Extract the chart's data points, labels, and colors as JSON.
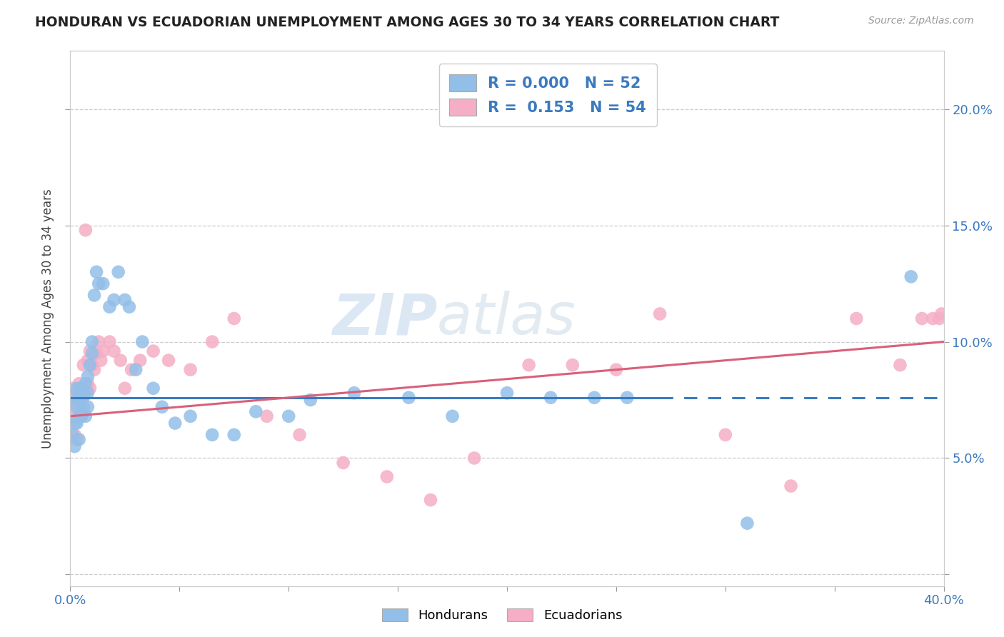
{
  "title": "HONDURAN VS ECUADORIAN UNEMPLOYMENT AMONG AGES 30 TO 34 YEARS CORRELATION CHART",
  "source": "Source: ZipAtlas.com",
  "ylabel": "Unemployment Among Ages 30 to 34 years",
  "xlim": [
    0.0,
    0.4
  ],
  "ylim": [
    -0.005,
    0.225
  ],
  "xticks": [
    0.0,
    0.05,
    0.1,
    0.15,
    0.2,
    0.25,
    0.3,
    0.35,
    0.4
  ],
  "yticks": [
    0.0,
    0.05,
    0.1,
    0.15,
    0.2
  ],
  "r_hondurans": "0.000",
  "n_hondurans": "52",
  "r_ecuadorians": "0.153",
  "n_ecuadorians": "54",
  "hondurans_color": "#92bfe8",
  "ecuadorians_color": "#f5aec5",
  "hondurans_line_color": "#3a7abf",
  "ecuadorians_line_color": "#d9607a",
  "watermark_zip": "ZIP",
  "watermark_atlas": "atlas",
  "background_color": "#ffffff",
  "h_line_y": 0.076,
  "h_line_solid_end": 0.27,
  "e_line_y0": 0.068,
  "e_line_y1": 0.1,
  "hondurans_x": [
    0.001,
    0.001,
    0.002,
    0.002,
    0.003,
    0.003,
    0.003,
    0.004,
    0.004,
    0.004,
    0.005,
    0.005,
    0.005,
    0.006,
    0.006,
    0.007,
    0.007,
    0.008,
    0.008,
    0.008,
    0.009,
    0.01,
    0.01,
    0.011,
    0.012,
    0.013,
    0.015,
    0.018,
    0.02,
    0.022,
    0.025,
    0.027,
    0.03,
    0.033,
    0.038,
    0.042,
    0.048,
    0.055,
    0.065,
    0.075,
    0.085,
    0.1,
    0.11,
    0.13,
    0.155,
    0.175,
    0.2,
    0.22,
    0.24,
    0.255,
    0.31,
    0.385
  ],
  "hondurans_y": [
    0.076,
    0.06,
    0.065,
    0.055,
    0.08,
    0.072,
    0.065,
    0.075,
    0.068,
    0.058,
    0.08,
    0.076,
    0.068,
    0.078,
    0.072,
    0.082,
    0.068,
    0.085,
    0.078,
    0.072,
    0.09,
    0.1,
    0.095,
    0.12,
    0.13,
    0.125,
    0.125,
    0.115,
    0.118,
    0.13,
    0.118,
    0.115,
    0.088,
    0.1,
    0.08,
    0.072,
    0.065,
    0.068,
    0.06,
    0.06,
    0.07,
    0.068,
    0.075,
    0.078,
    0.076,
    0.068,
    0.078,
    0.076,
    0.076,
    0.076,
    0.022,
    0.128
  ],
  "ecuadorians_x": [
    0.001,
    0.001,
    0.002,
    0.002,
    0.003,
    0.003,
    0.003,
    0.004,
    0.004,
    0.005,
    0.005,
    0.006,
    0.006,
    0.007,
    0.007,
    0.008,
    0.008,
    0.009,
    0.009,
    0.01,
    0.011,
    0.012,
    0.013,
    0.014,
    0.015,
    0.018,
    0.02,
    0.023,
    0.025,
    0.028,
    0.032,
    0.038,
    0.045,
    0.055,
    0.065,
    0.075,
    0.09,
    0.105,
    0.125,
    0.145,
    0.165,
    0.185,
    0.21,
    0.23,
    0.25,
    0.27,
    0.3,
    0.33,
    0.36,
    0.38,
    0.39,
    0.395,
    0.398,
    0.399
  ],
  "ecuadorians_y": [
    0.08,
    0.068,
    0.072,
    0.06,
    0.075,
    0.068,
    0.058,
    0.082,
    0.072,
    0.08,
    0.068,
    0.09,
    0.076,
    0.148,
    0.078,
    0.082,
    0.092,
    0.08,
    0.096,
    0.09,
    0.088,
    0.095,
    0.1,
    0.092,
    0.096,
    0.1,
    0.096,
    0.092,
    0.08,
    0.088,
    0.092,
    0.096,
    0.092,
    0.088,
    0.1,
    0.11,
    0.068,
    0.06,
    0.048,
    0.042,
    0.032,
    0.05,
    0.09,
    0.09,
    0.088,
    0.112,
    0.06,
    0.038,
    0.11,
    0.09,
    0.11,
    0.11,
    0.11,
    0.112
  ]
}
